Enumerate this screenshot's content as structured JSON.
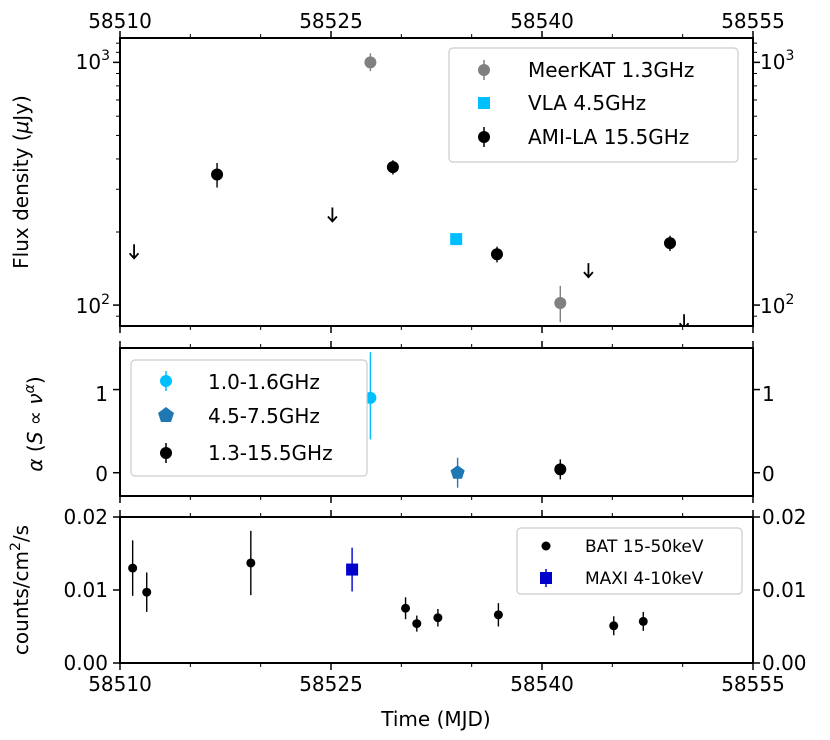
{
  "chart_data": [
    {
      "type": "scatter",
      "panel": "flux",
      "xlabel": "",
      "ylabel": "Flux density (μJy)",
      "yscale": "log",
      "xlim": [
        58510,
        58555
      ],
      "ylim": [
        82,
        1260
      ],
      "x_ticks": [
        "58510",
        "58525",
        "58540",
        "58555"
      ],
      "top_x_ticks": [
        "58510",
        "58525",
        "58540",
        "58555"
      ],
      "y_major_ticks": [
        {
          "value": 100,
          "base": "10",
          "exp": "2"
        },
        {
          "value": 1000,
          "base": "10",
          "exp": "3"
        }
      ],
      "legend": [
        "MeerKAT 1.3GHz",
        "VLA 4.5GHz",
        "AMI-LA 15.5GHz"
      ],
      "series": [
        {
          "name": "MeerKAT 1.3GHz",
          "color": "#808080",
          "marker": "circle",
          "points": [
            {
              "x": 58527.8,
              "y": 1000,
              "lo": 920,
              "hi": 1090
            },
            {
              "x": 58541.3,
              "y": 102,
              "lo": 85,
              "hi": 120
            }
          ]
        },
        {
          "name": "VLA 4.5GHz",
          "color": "#00bfff",
          "marker": "square",
          "points": [
            {
              "x": 58533.9,
              "y": 187,
              "lo": 180,
              "hi": 194
            }
          ]
        },
        {
          "name": "AMI-LA 15.5GHz",
          "color": "#000000",
          "marker": "circle",
          "points": [
            {
              "x": 58516.9,
              "y": 345,
              "lo": 305,
              "hi": 385
            },
            {
              "x": 58529.4,
              "y": 370,
              "lo": 345,
              "hi": 395
            },
            {
              "x": 58536.8,
              "y": 162,
              "lo": 150,
              "hi": 174
            },
            {
              "x": 58549.1,
              "y": 180,
              "lo": 167,
              "hi": 193
            }
          ]
        },
        {
          "name": "AMI-LA 15.5GHz upper limits",
          "color": "#000000",
          "marker": "down-arrow",
          "points": [
            {
              "x": 58511.0,
              "y": 165
            },
            {
              "x": 58525.1,
              "y": 234
            },
            {
              "x": 58543.3,
              "y": 138
            },
            {
              "x": 58550.1,
              "y": 85
            }
          ]
        }
      ]
    },
    {
      "type": "scatter",
      "panel": "alpha",
      "ylabel": "α (S ∝ ν^α)",
      "ylim": [
        -0.28,
        1.5
      ],
      "y_ticks": [
        "0",
        "1"
      ],
      "legend": [
        "1.0-1.6GHz",
        "4.5-7.5GHz",
        "1.3-15.5GHz"
      ],
      "series": [
        {
          "name": "1.0-1.6GHz",
          "color": "#00bfff",
          "marker": "circle",
          "points": [
            {
              "x": 58527.8,
              "y": 0.9,
              "lo": 0.4,
              "hi": 1.45
            }
          ]
        },
        {
          "name": "4.5-7.5GHz",
          "color": "#1f77b4",
          "marker": "pentagon",
          "points": [
            {
              "x": 58534.0,
              "y": 0.0,
              "lo": -0.18,
              "hi": 0.18
            }
          ]
        },
        {
          "name": "1.3-15.5GHz",
          "color": "#000000",
          "marker": "circle",
          "points": [
            {
              "x": 58541.3,
              "y": 0.04,
              "lo": -0.08,
              "hi": 0.16
            }
          ]
        }
      ]
    },
    {
      "type": "scatter",
      "panel": "xray",
      "xlabel": "Time (MJD)",
      "ylabel": "counts/cm²/s",
      "ylim": [
        0,
        0.02
      ],
      "y_ticks": [
        "0.00",
        "0.01",
        "0.02"
      ],
      "legend": [
        "BAT 15-50keV",
        "MAXI 4-10keV"
      ],
      "series": [
        {
          "name": "BAT 15-50keV",
          "color": "#000000",
          "marker": "small-circle",
          "points": [
            {
              "x": 58510.9,
              "y": 0.013,
              "lo": 0.0092,
              "hi": 0.0168
            },
            {
              "x": 58511.9,
              "y": 0.0097,
              "lo": 0.007,
              "hi": 0.0124
            },
            {
              "x": 58519.3,
              "y": 0.0137,
              "lo": 0.0093,
              "hi": 0.0181
            },
            {
              "x": 58530.3,
              "y": 0.0075,
              "lo": 0.006,
              "hi": 0.009
            },
            {
              "x": 58531.1,
              "y": 0.0054,
              "lo": 0.0043,
              "hi": 0.0065
            },
            {
              "x": 58532.6,
              "y": 0.0062,
              "lo": 0.005,
              "hi": 0.0074
            },
            {
              "x": 58536.9,
              "y": 0.0066,
              "lo": 0.005,
              "hi": 0.0082
            },
            {
              "x": 58545.1,
              "y": 0.0051,
              "lo": 0.0038,
              "hi": 0.0064
            },
            {
              "x": 58547.2,
              "y": 0.0057,
              "lo": 0.0044,
              "hi": 0.007
            }
          ]
        },
        {
          "name": "MAXI 4-10keV",
          "color": "#0000cd",
          "marker": "square",
          "points": [
            {
              "x": 58526.5,
              "y": 0.0128,
              "lo": 0.0098,
              "hi": 0.0158
            }
          ]
        }
      ]
    }
  ]
}
